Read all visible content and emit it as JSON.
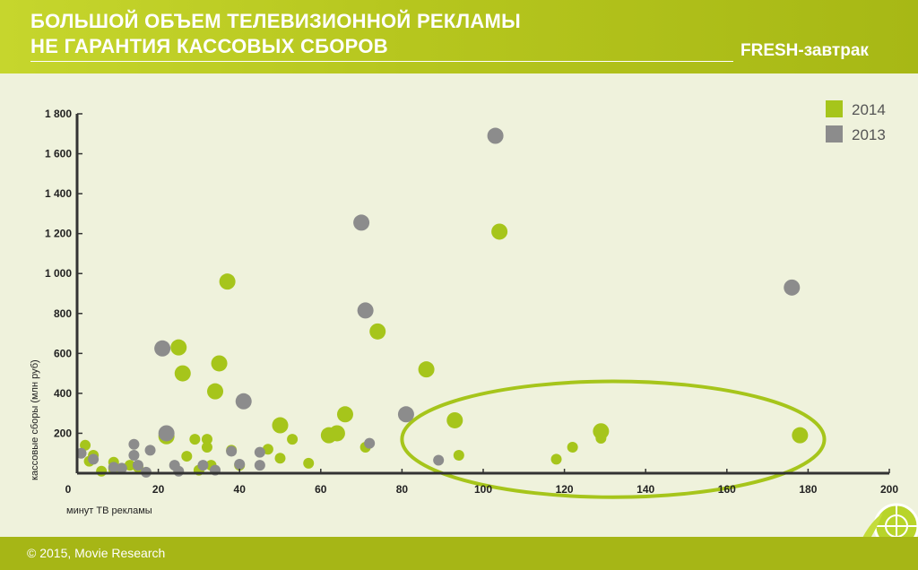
{
  "header": {
    "title_line1": "БОЛЬШОЙ ОБЪЕМ ТЕЛЕВИЗИОННОЙ РЕКЛАМЫ",
    "title_line2": "НЕ ГАРАНТИЯ КАССОВЫХ СБОРОВ",
    "brand": "FRESH-завтрак"
  },
  "footer": {
    "copyright": "© 2015, Movie Research"
  },
  "colors": {
    "s2014": "#a6c51b",
    "s2013": "#8c8c8c",
    "highlight": "#a6c51b",
    "axis": "#333333"
  },
  "chart_data": {
    "type": "scatter",
    "xlabel": "минут ТВ рекламы",
    "ylabel": "кассовые сборы (млн руб)",
    "xlim": [
      0,
      200
    ],
    "ylim": [
      0,
      1800
    ],
    "x_ticks": [
      "0",
      "20",
      "40",
      "60",
      "80",
      "100",
      "120",
      "140",
      "160",
      "180",
      "200"
    ],
    "y_ticks": [
      "200",
      "400",
      "600",
      "800",
      "1 000",
      "1 200",
      "1 400",
      "1 600",
      "1 800"
    ],
    "legend": [
      "2014",
      "2013"
    ],
    "legend_position": "top-right",
    "highlight_region": {
      "shape": "ellipse",
      "x_range": [
        80,
        184
      ],
      "y_range": [
        -120,
        460
      ]
    },
    "series": [
      {
        "name": "2014",
        "points": [
          [
            2,
            140
          ],
          [
            3,
            60
          ],
          [
            4,
            90
          ],
          [
            6,
            10
          ],
          [
            9,
            55
          ],
          [
            9,
            20
          ],
          [
            13,
            40
          ],
          [
            15,
            30
          ],
          [
            22,
            185
          ],
          [
            25,
            630
          ],
          [
            26,
            500
          ],
          [
            27,
            85
          ],
          [
            29,
            170
          ],
          [
            30,
            15
          ],
          [
            32,
            170
          ],
          [
            32,
            130
          ],
          [
            33,
            40
          ],
          [
            34,
            410
          ],
          [
            35,
            550
          ],
          [
            37,
            960
          ],
          [
            38,
            115
          ],
          [
            40,
            40
          ],
          [
            47,
            120
          ],
          [
            50,
            240
          ],
          [
            50,
            75
          ],
          [
            53,
            170
          ],
          [
            57,
            50
          ],
          [
            62,
            190
          ],
          [
            64,
            200
          ],
          [
            66,
            295
          ],
          [
            71,
            130
          ],
          [
            74,
            710
          ],
          [
            86,
            520
          ],
          [
            93,
            265
          ],
          [
            94,
            90
          ],
          [
            118,
            70
          ],
          [
            122,
            130
          ],
          [
            129,
            175
          ],
          [
            129,
            210
          ],
          [
            178,
            190
          ],
          [
            104,
            1210
          ]
        ]
      },
      {
        "name": "2013",
        "points": [
          [
            1,
            100
          ],
          [
            4,
            70
          ],
          [
            9,
            30
          ],
          [
            11,
            25
          ],
          [
            14,
            90
          ],
          [
            14,
            145
          ],
          [
            15,
            40
          ],
          [
            17,
            5
          ],
          [
            18,
            115
          ],
          [
            21,
            625
          ],
          [
            22,
            200
          ],
          [
            24,
            40
          ],
          [
            25,
            10
          ],
          [
            31,
            40
          ],
          [
            34,
            15
          ],
          [
            38,
            110
          ],
          [
            40,
            45
          ],
          [
            41,
            360
          ],
          [
            45,
            40
          ],
          [
            45,
            105
          ],
          [
            70,
            1255
          ],
          [
            71,
            815
          ],
          [
            72,
            150
          ],
          [
            81,
            295
          ],
          [
            89,
            65
          ],
          [
            103,
            1690
          ],
          [
            176,
            930
          ]
        ]
      }
    ]
  }
}
